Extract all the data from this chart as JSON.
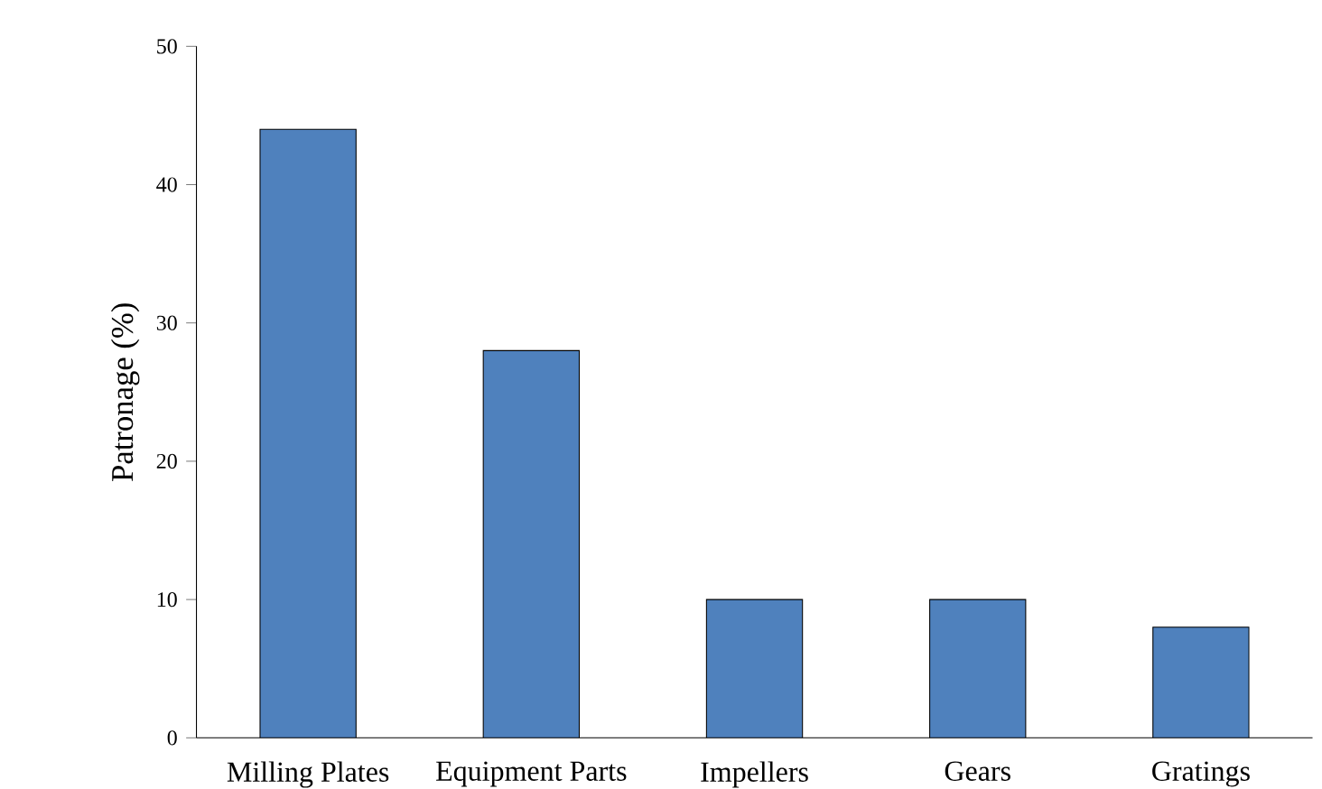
{
  "chart_data": {
    "type": "bar",
    "ylabel": "Patronage (%)",
    "categories": [
      "Milling Plates",
      "Equipment Parts",
      "Impellers",
      "Gears",
      "Gratings"
    ],
    "values": [
      44,
      28,
      10,
      10,
      8
    ],
    "color": "#4f81bd",
    "ylim": [
      0,
      50
    ],
    "yticks": [
      0,
      10,
      20,
      30,
      40,
      50
    ]
  }
}
